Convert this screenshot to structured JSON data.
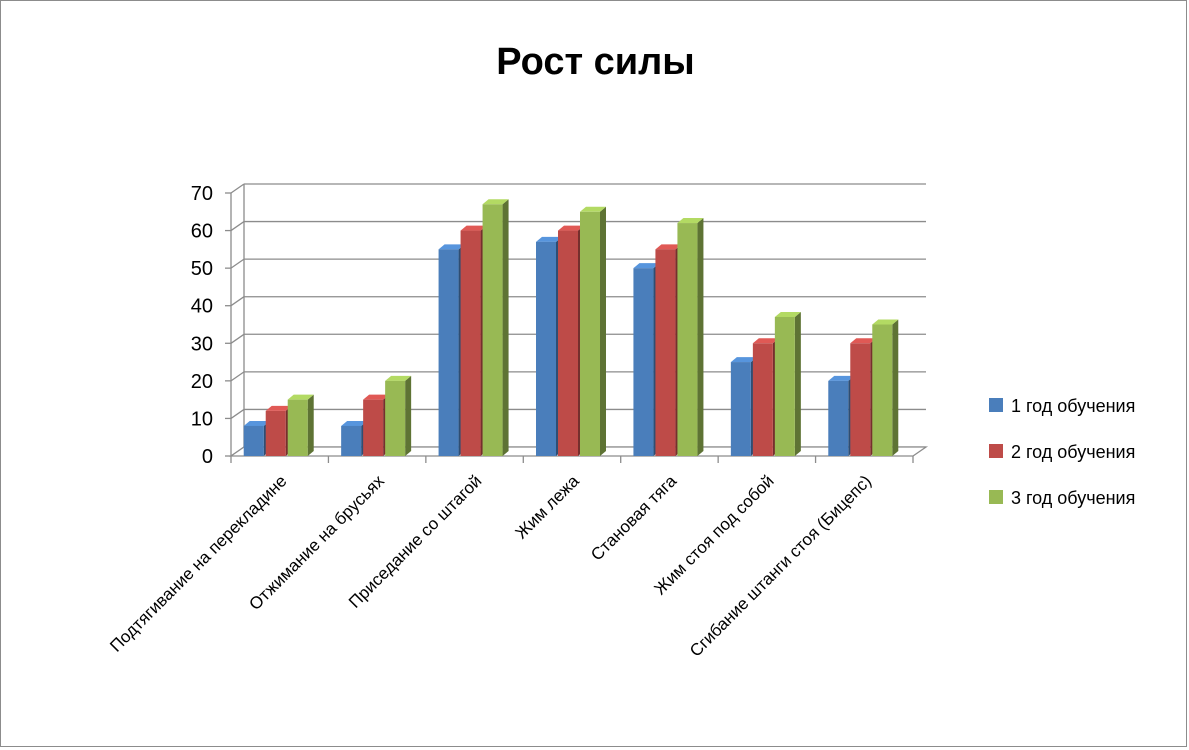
{
  "chart_data": {
    "type": "bar",
    "title": "Рост силы",
    "categories": [
      "Подтягивание на перекладине",
      "Отжимание на брусьях",
      "Приседание со штагой",
      "Жим лежа",
      "Становая тяга",
      "Жим стоя под собой",
      "Сгибание штанги стоя (Бицепс)"
    ],
    "series": [
      {
        "name": "1 год обучения",
        "color": "#4a7ebb",
        "values": [
          8,
          8,
          55,
          57,
          50,
          25,
          20
        ]
      },
      {
        "name": "2 год обучения",
        "color": "#be4b48",
        "values": [
          12,
          15,
          60,
          60,
          55,
          30,
          30
        ]
      },
      {
        "name": "3 год обучения",
        "color": "#98b954",
        "values": [
          15,
          20,
          67,
          65,
          62,
          37,
          35
        ]
      }
    ],
    "ylim": [
      0,
      70
    ],
    "yticks": [
      0,
      10,
      20,
      30,
      40,
      50,
      60,
      70
    ],
    "grid": true,
    "legend": "right",
    "style": "3d-clustered-column"
  }
}
